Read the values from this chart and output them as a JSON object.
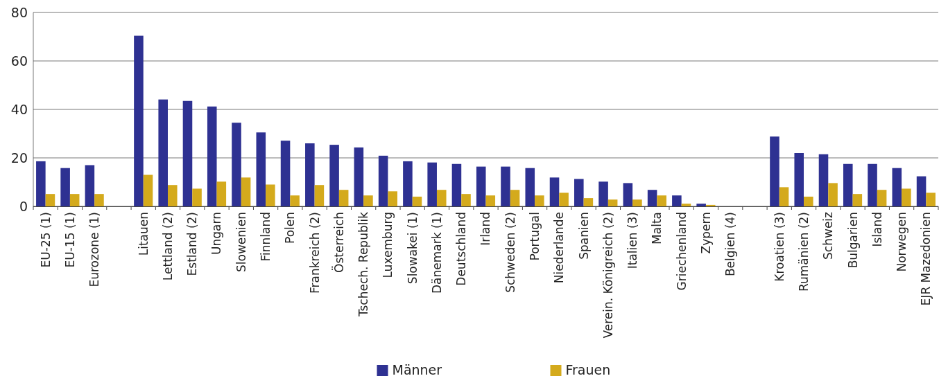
{
  "chart_data": {
    "type": "bar",
    "categories": [
      "EU-25 (1)",
      "EU-15 (1)",
      "Eurozone (1)",
      null,
      "Litauen",
      "Lettland (2)",
      "Estland (2)",
      "Ungarn",
      "Slowenien",
      "Finnland",
      "Polen",
      "Frankreich (2)",
      "Österreich",
      "Tschech. Republik",
      "Luxemburg",
      "Slowakei (1)",
      "Dänemark (1)",
      "Deutschland",
      "Irland",
      "Schweden (2)",
      "Portugal",
      "Niederlande",
      "Spanien",
      "Verein. Königreich (2)",
      "Italien (3)",
      "Malta",
      "Griechenland",
      "Zypern",
      "Belgien (4)",
      null,
      "Kroatien (3)",
      "Rumänien (2)",
      "Schweiz",
      "Bulgarien",
      "Island",
      "Norwegen",
      "EJR Mazedonien"
    ],
    "series": [
      {
        "name": "Männer",
        "color": "#2e3192",
        "values": [
          18.6,
          15.8,
          17.0,
          null,
          70.4,
          44.1,
          43.5,
          41.2,
          34.5,
          30.5,
          27.1,
          26.0,
          25.4,
          24.3,
          20.9,
          18.6,
          18.1,
          17.5,
          16.4,
          16.4,
          15.8,
          11.9,
          11.3,
          10.2,
          9.6,
          6.8,
          4.5,
          1.1,
          null,
          null,
          28.8,
          22.0,
          21.5,
          17.5,
          17.5,
          15.8,
          12.4
        ]
      },
      {
        "name": "Frauen",
        "color": "#d4aa1c",
        "values": [
          5.1,
          5.1,
          5.1,
          null,
          13.0,
          8.8,
          7.3,
          10.2,
          11.9,
          9.0,
          4.5,
          8.8,
          6.8,
          4.5,
          6.2,
          4.0,
          6.8,
          5.1,
          4.5,
          6.8,
          4.5,
          5.6,
          3.4,
          2.8,
          2.8,
          4.5,
          1.1,
          0.6,
          null,
          null,
          7.9,
          4.0,
          9.6,
          5.1,
          6.8,
          7.3,
          5.6
        ]
      }
    ],
    "ylim": [
      0,
      80
    ],
    "yticks": [
      0,
      20,
      40,
      60,
      80
    ],
    "grid": "y",
    "legend": "bottom"
  }
}
